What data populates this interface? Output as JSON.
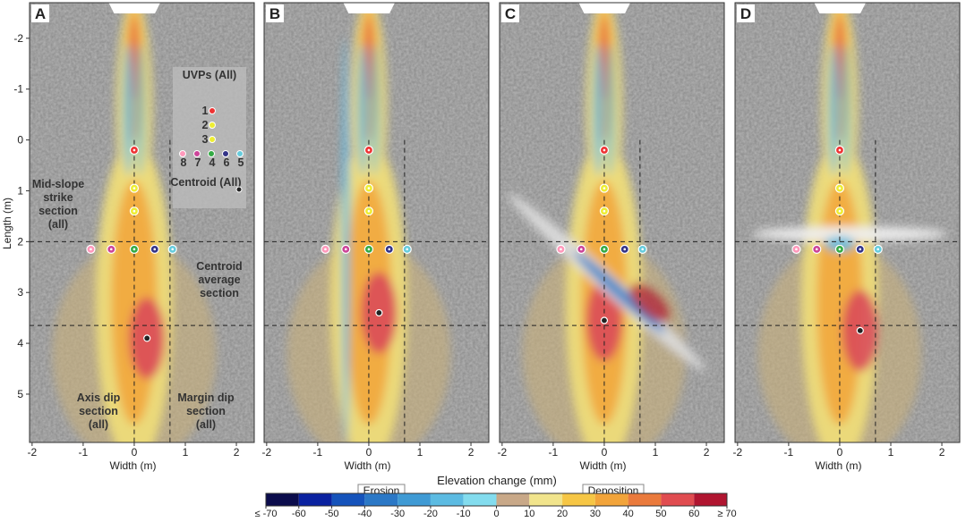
{
  "chart_data": [
    {
      "type": "heatmap",
      "label": "A",
      "xlabel": "Width (m)",
      "ylabel": "Length (m)",
      "xlim": [
        -2.05,
        2.35
      ],
      "xticks": [
        -2,
        -1,
        0,
        1,
        2
      ],
      "ylim": [
        -2.7,
        5.95
      ],
      "yticks": [
        -2,
        -1,
        0,
        1,
        2,
        3,
        4,
        5
      ],
      "annotations": {
        "uvps": "UVPs (All)",
        "uvp_numbers": [
          "1",
          "2",
          "3",
          "8",
          "7",
          "4",
          "6",
          "5"
        ],
        "centroid": "Centroid (All)",
        "strike": "Mid-slope strike section (all)",
        "average": "Centroid average section (all)",
        "axis_dip": "Axis dip section (all)",
        "margin_dip": "Margin dip section (all)"
      }
    },
    {
      "type": "heatmap",
      "label": "B",
      "xlabel": "Width (m)",
      "xlim": [
        -2.05,
        2.35
      ],
      "xticks": [
        -2,
        -1,
        0,
        1,
        2
      ],
      "ylim": [
        -2.7,
        5.95
      ]
    },
    {
      "type": "heatmap",
      "label": "C",
      "xlabel": "Width (m)",
      "xlim": [
        -2.05,
        2.35
      ],
      "xticks": [
        -2,
        -1,
        0,
        1,
        2
      ],
      "ylim": [
        -2.7,
        5.95
      ]
    },
    {
      "type": "heatmap",
      "label": "D",
      "xlabel": "Width (m)",
      "xlim": [
        -2.05,
        2.35
      ],
      "xticks": [
        -2,
        -1,
        0,
        1,
        2
      ],
      "ylim": [
        -2.7,
        5.95
      ]
    }
  ],
  "colorbar": {
    "title": "Elevation change (mm)",
    "erosion": "Erosion",
    "deposition": "Deposition",
    "ticks": [
      {
        "value": -70,
        "label": "≤ -70"
      },
      -60,
      -50,
      -40,
      -30,
      -20,
      -10,
      0,
      10,
      20,
      30,
      40,
      50,
      60,
      {
        "value": 70,
        "label": "≥ 70"
      }
    ],
    "colors": [
      "#0b0c4c",
      "#0a22a0",
      "#1553bb",
      "#2b78c6",
      "#3f9ad4",
      "#5cbbe2",
      "#83dcee",
      "#c8a888",
      "#f1e48c",
      "#f6c645",
      "#f2a43a",
      "#ea7a3c",
      "#e04c50",
      "#b01530"
    ]
  }
}
